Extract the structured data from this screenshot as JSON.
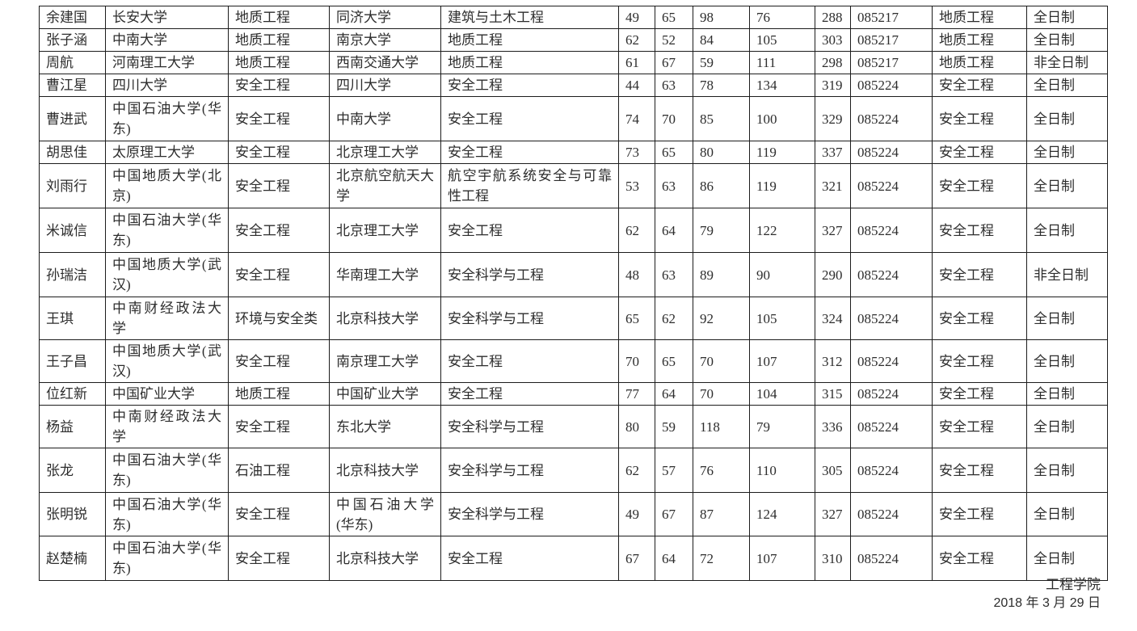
{
  "footer": {
    "signature": "工程学院",
    "date": "2018 年 3 月 29 日"
  },
  "table": {
    "rows": [
      {
        "name": "余建国",
        "college": "长安大学",
        "major": "地质工程",
        "target_college": "同济大学",
        "target_major": "建筑与土木工程",
        "s1": "49",
        "s2": "65",
        "s3": "98",
        "s4": "76",
        "total": "288",
        "code": "085217",
        "admit_major": "地质工程",
        "mode": "全日制"
      },
      {
        "name": "张子涵",
        "college": "中南大学",
        "major": "地质工程",
        "target_college": "南京大学",
        "target_major": "地质工程",
        "s1": "62",
        "s2": "52",
        "s3": "84",
        "s4": "105",
        "total": "303",
        "code": "085217",
        "admit_major": "地质工程",
        "mode": "全日制"
      },
      {
        "name": "周航",
        "college": "河南理工大学",
        "major": "地质工程",
        "target_college": "西南交通大学",
        "target_major": "地质工程",
        "s1": "61",
        "s2": "67",
        "s3": "59",
        "s4": "111",
        "total": "298",
        "code": "085217",
        "admit_major": "地质工程",
        "mode": "非全日制"
      },
      {
        "name": "曹江星",
        "college": "四川大学",
        "major": "安全工程",
        "target_college": "四川大学",
        "target_major": "安全工程",
        "s1": "44",
        "s2": "63",
        "s3": "78",
        "s4": "134",
        "total": "319",
        "code": "085224",
        "admit_major": "安全工程",
        "mode": "全日制"
      },
      {
        "name": "曹进武",
        "college": "中国石油大学(华东)",
        "major": "安全工程",
        "target_college": "中南大学",
        "target_major": "安全工程",
        "s1": "74",
        "s2": "70",
        "s3": "85",
        "s4": "100",
        "total": "329",
        "code": "085224",
        "admit_major": "安全工程",
        "mode": "全日制"
      },
      {
        "name": "胡思佳",
        "college": "太原理工大学",
        "major": "安全工程",
        "target_college": "北京理工大学",
        "target_major": "安全工程",
        "s1": "73",
        "s2": "65",
        "s3": "80",
        "s4": "119",
        "total": "337",
        "code": "085224",
        "admit_major": "安全工程",
        "mode": "全日制"
      },
      {
        "name": "刘雨行",
        "college": "中国地质大学(北京)",
        "major": "安全工程",
        "target_college": "北京航空航天大学",
        "target_major": "航空宇航系统安全与可靠性工程",
        "s1": "53",
        "s2": "63",
        "s3": "86",
        "s4": "119",
        "total": "321",
        "code": "085224",
        "admit_major": "安全工程",
        "mode": "全日制"
      },
      {
        "name": "米诚信",
        "college": "中国石油大学(华东)",
        "major": "安全工程",
        "target_college": "北京理工大学",
        "target_major": "安全工程",
        "s1": "62",
        "s2": "64",
        "s3": "79",
        "s4": "122",
        "total": "327",
        "code": "085224",
        "admit_major": "安全工程",
        "mode": "全日制"
      },
      {
        "name": "孙瑞洁",
        "college": "中国地质大学(武汉)",
        "major": "安全工程",
        "target_college": "华南理工大学",
        "target_major": "安全科学与工程",
        "s1": "48",
        "s2": "63",
        "s3": "89",
        "s4": "90",
        "total": "290",
        "code": "085224",
        "admit_major": "安全工程",
        "mode": "非全日制"
      },
      {
        "name": "王琪",
        "college": "中南财经政法大学",
        "major": "环境与安全类",
        "target_college": "北京科技大学",
        "target_major": "安全科学与工程",
        "s1": "65",
        "s2": "62",
        "s3": "92",
        "s4": "105",
        "total": "324",
        "code": "085224",
        "admit_major": "安全工程",
        "mode": "全日制"
      },
      {
        "name": "王子昌",
        "college": "中国地质大学(武汉)",
        "major": "安全工程",
        "target_college": "南京理工大学",
        "target_major": "安全工程",
        "s1": "70",
        "s2": "65",
        "s3": "70",
        "s4": "107",
        "total": "312",
        "code": "085224",
        "admit_major": "安全工程",
        "mode": "全日制"
      },
      {
        "name": "位红新",
        "college": "中国矿业大学",
        "major": "地质工程",
        "target_college": "中国矿业大学",
        "target_major": "安全工程",
        "s1": "77",
        "s2": "64",
        "s3": "70",
        "s4": "104",
        "total": "315",
        "code": "085224",
        "admit_major": "安全工程",
        "mode": "全日制"
      },
      {
        "name": "杨益",
        "college": "中南财经政法大学",
        "major": "安全工程",
        "target_college": "东北大学",
        "target_major": "安全科学与工程",
        "s1": "80",
        "s2": "59",
        "s3": "118",
        "s4": "79",
        "total": "336",
        "code": "085224",
        "admit_major": "安全工程",
        "mode": "全日制"
      },
      {
        "name": "张龙",
        "college": "中国石油大学(华东)",
        "major": "石油工程",
        "target_college": "北京科技大学",
        "target_major": "安全科学与工程",
        "s1": "62",
        "s2": "57",
        "s3": "76",
        "s4": "110",
        "total": "305",
        "code": "085224",
        "admit_major": "安全工程",
        "mode": "全日制"
      },
      {
        "name": "张明锐",
        "college": "中国石油大学(华东)",
        "major": "安全工程",
        "target_college": "中国石油大学(华东)",
        "target_major": "安全科学与工程",
        "s1": "49",
        "s2": "67",
        "s3": "87",
        "s4": "124",
        "total": "327",
        "code": "085224",
        "admit_major": "安全工程",
        "mode": "全日制"
      },
      {
        "name": "赵楚楠",
        "college": "中国石油大学(华东)",
        "major": "安全工程",
        "target_college": "北京科技大学",
        "target_major": "安全工程",
        "s1": "67",
        "s2": "64",
        "s3": "72",
        "s4": "107",
        "total": "310",
        "code": "085224",
        "admit_major": "安全工程",
        "mode": "全日制"
      }
    ]
  }
}
